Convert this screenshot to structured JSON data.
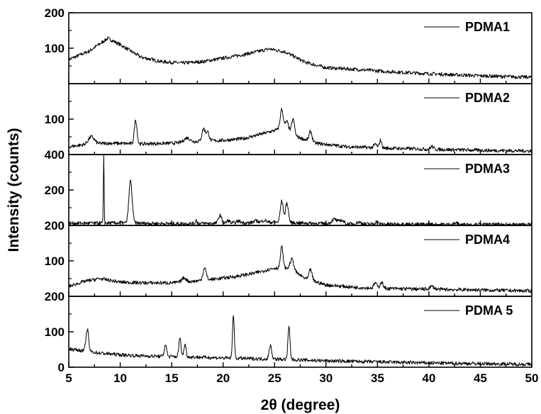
{
  "chart_data": {
    "type": "line",
    "xlabel": "2θ (degree)",
    "ylabel": "Intensity (counts)",
    "xlim": [
      5,
      50
    ],
    "x_ticks": [
      "5",
      "10",
      "15",
      "20",
      "25",
      "30",
      "35",
      "40",
      "45",
      "50"
    ],
    "grid": false,
    "legend_placement": "top-right of each panel",
    "line_color": "#000000",
    "panels": [
      {
        "name": "PDMA1",
        "ylim": [
          0,
          200
        ],
        "y_ticks": [
          "100",
          "200"
        ],
        "baseline": [
          [
            5,
            68
          ],
          [
            7,
            92
          ],
          [
            8.8,
            128
          ],
          [
            10,
            110
          ],
          [
            12,
            75
          ],
          [
            14,
            62
          ],
          [
            16,
            58
          ],
          [
            18,
            62
          ],
          [
            20,
            72
          ],
          [
            22,
            82
          ],
          [
            24.5,
            98
          ],
          [
            26,
            90
          ],
          [
            28,
            60
          ],
          [
            30,
            45
          ],
          [
            33,
            40
          ],
          [
            36,
            34
          ],
          [
            40,
            28
          ],
          [
            45,
            22
          ],
          [
            50,
            18
          ]
        ],
        "peaks": []
      },
      {
        "name": "PDMA2",
        "ylim": [
          0,
          200
        ],
        "y_ticks": [
          "100"
        ],
        "baseline": [
          [
            5,
            22
          ],
          [
            7,
            30
          ],
          [
            9,
            32
          ],
          [
            12,
            30
          ],
          [
            15,
            32
          ],
          [
            18,
            38
          ],
          [
            20,
            40
          ],
          [
            22,
            45
          ],
          [
            24,
            60
          ],
          [
            25.5,
            72
          ],
          [
            27,
            52
          ],
          [
            29,
            32
          ],
          [
            32,
            22
          ],
          [
            36,
            18
          ],
          [
            40,
            15
          ],
          [
            45,
            12
          ],
          [
            50,
            10
          ]
        ],
        "peaks": [
          [
            7.2,
            20,
            0.4
          ],
          [
            11.5,
            68,
            0.18
          ],
          [
            16.5,
            12,
            0.4
          ],
          [
            18.1,
            35,
            0.22
          ],
          [
            18.5,
            25,
            0.2
          ],
          [
            25.7,
            58,
            0.2
          ],
          [
            26.2,
            30,
            0.25
          ],
          [
            26.8,
            45,
            0.2
          ],
          [
            28.5,
            28,
            0.2
          ],
          [
            34.8,
            10,
            0.2
          ],
          [
            35.3,
            22,
            0.15
          ],
          [
            40.3,
            8,
            0.2
          ]
        ]
      },
      {
        "name": "PDMA3",
        "ylim": [
          0,
          400
        ],
        "y_ticks": [
          "200",
          "400"
        ],
        "baseline": [
          [
            5,
            12
          ],
          [
            10,
            14
          ],
          [
            15,
            10
          ],
          [
            20,
            12
          ],
          [
            25,
            18
          ],
          [
            30,
            10
          ],
          [
            35,
            8
          ],
          [
            40,
            6
          ],
          [
            45,
            5
          ],
          [
            50,
            5
          ]
        ],
        "peaks": [
          [
            8.4,
            400,
            0.05
          ],
          [
            11.0,
            240,
            0.22
          ],
          [
            17.4,
            20,
            0.12
          ],
          [
            19.7,
            45,
            0.22
          ],
          [
            20.5,
            15,
            0.2
          ],
          [
            21.5,
            10,
            0.3
          ],
          [
            23.2,
            10,
            0.3
          ],
          [
            24.0,
            12,
            0.3
          ],
          [
            25.7,
            120,
            0.2
          ],
          [
            26.2,
            110,
            0.2
          ],
          [
            30.8,
            25,
            0.35
          ],
          [
            31.5,
            20,
            0.3
          ],
          [
            33.2,
            10,
            0.3
          ],
          [
            34.9,
            12,
            0.2
          ],
          [
            42.6,
            8,
            0.3
          ]
        ]
      },
      {
        "name": "PDMA4",
        "ylim": [
          0,
          200
        ],
        "y_ticks": [
          "100",
          "200"
        ],
        "baseline": [
          [
            5,
            28
          ],
          [
            6.5,
            42
          ],
          [
            8,
            50
          ],
          [
            10,
            40
          ],
          [
            12,
            38
          ],
          [
            15,
            38
          ],
          [
            17,
            42
          ],
          [
            19,
            48
          ],
          [
            21,
            55
          ],
          [
            23,
            65
          ],
          [
            25,
            80
          ],
          [
            26.5,
            78
          ],
          [
            28,
            50
          ],
          [
            30,
            32
          ],
          [
            33,
            25
          ],
          [
            36,
            22
          ],
          [
            40,
            20
          ],
          [
            45,
            18
          ],
          [
            50,
            15
          ]
        ],
        "peaks": [
          [
            16.2,
            12,
            0.3
          ],
          [
            18.2,
            35,
            0.22
          ],
          [
            25.7,
            60,
            0.18
          ],
          [
            26.7,
            30,
            0.25
          ],
          [
            28.5,
            30,
            0.2
          ],
          [
            34.8,
            15,
            0.2
          ],
          [
            35.4,
            18,
            0.2
          ],
          [
            40.3,
            8,
            0.3
          ]
        ]
      },
      {
        "name": "PDMA 5",
        "ylim": [
          0,
          200
        ],
        "y_ticks": [
          "0",
          "100",
          "200"
        ],
        "baseline": [
          [
            5,
            52
          ],
          [
            6,
            48
          ],
          [
            8,
            40
          ],
          [
            10,
            35
          ],
          [
            12,
            32
          ],
          [
            15,
            30
          ],
          [
            18,
            28
          ],
          [
            20,
            26
          ],
          [
            23,
            24
          ],
          [
            26,
            22
          ],
          [
            30,
            18
          ],
          [
            35,
            15
          ],
          [
            40,
            12
          ],
          [
            45,
            10
          ],
          [
            50,
            8
          ]
        ],
        "peaks": [
          [
            6.8,
            62,
            0.18
          ],
          [
            14.4,
            35,
            0.15
          ],
          [
            15.8,
            52,
            0.15
          ],
          [
            16.3,
            35,
            0.15
          ],
          [
            21.0,
            125,
            0.12
          ],
          [
            24.6,
            38,
            0.18
          ],
          [
            26.4,
            92,
            0.14
          ]
        ]
      }
    ]
  }
}
